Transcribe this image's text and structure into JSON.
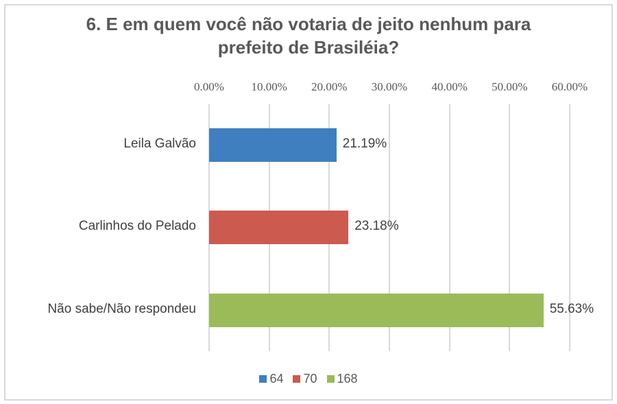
{
  "chart_data": {
    "type": "bar",
    "orientation": "horizontal",
    "title": "6. E em quem você não votaria de jeito nenhum para prefeito de Brasiléia?",
    "title_lines": [
      "6. E em quem você não votaria de jeito nenhum para",
      "prefeito de Brasiléia?"
    ],
    "categories": [
      "Leila Galvão",
      "Carlinhos do Pelado",
      "Não sabe/Não respondeu"
    ],
    "values": [
      21.19,
      23.18,
      55.63
    ],
    "value_labels": [
      "21.19%",
      "23.18%",
      "55.63%"
    ],
    "colors": [
      "#3f7fbf",
      "#cc5a4f",
      "#9bbb59"
    ],
    "xlim": [
      0,
      60
    ],
    "xticks": [
      0,
      10,
      20,
      30,
      40,
      50,
      60
    ],
    "xtick_labels": [
      "0.00%",
      "10.00%",
      "20.00%",
      "30.00%",
      "40.00%",
      "50.00%",
      "60.00%"
    ],
    "xaxis_position": "top",
    "grid": true,
    "legend": {
      "position": "bottom",
      "entries": [
        {
          "label": "64",
          "color": "#3f7fbf"
        },
        {
          "label": "70",
          "color": "#cc5a4f"
        },
        {
          "label": "168",
          "color": "#9bbb59"
        }
      ]
    },
    "xlabel": "",
    "ylabel": ""
  }
}
